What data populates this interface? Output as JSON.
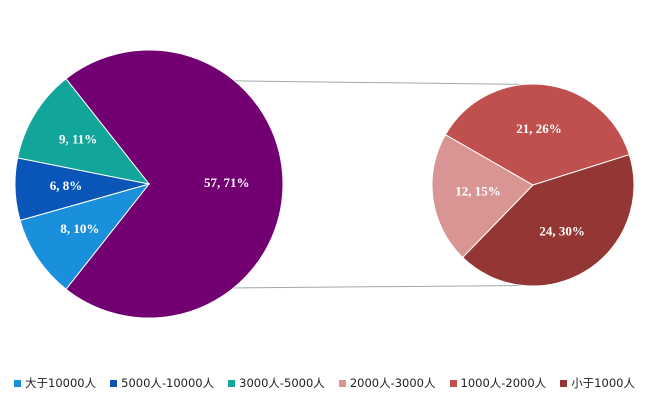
{
  "chart_data": {
    "type": "pie",
    "subtype": "pie-of-pie",
    "slices": [
      {
        "label": "大于10000人",
        "value": 8,
        "percent": "10%",
        "color": "#1a8fdc",
        "group": "main"
      },
      {
        "label": "5000人-10000人",
        "value": 6,
        "percent": "8%",
        "color": "#0a55b8",
        "group": "main"
      },
      {
        "label": "3000人-5000人",
        "value": 9,
        "percent": "11%",
        "color": "#12a69a",
        "group": "main"
      },
      {
        "label": "2000人-3000人",
        "value": 12,
        "percent": "15%",
        "color": "#d99594",
        "group": "secondary"
      },
      {
        "label": "1000人-2000人",
        "value": 21,
        "percent": "26%",
        "color": "#c0504d",
        "group": "secondary"
      },
      {
        "label": "小于1000人",
        "value": 24,
        "percent": "30%",
        "color": "#943634",
        "group": "secondary"
      }
    ],
    "other": {
      "value": 57,
      "percent": "71%",
      "color": "#730073"
    },
    "legend_position": "bottom"
  }
}
